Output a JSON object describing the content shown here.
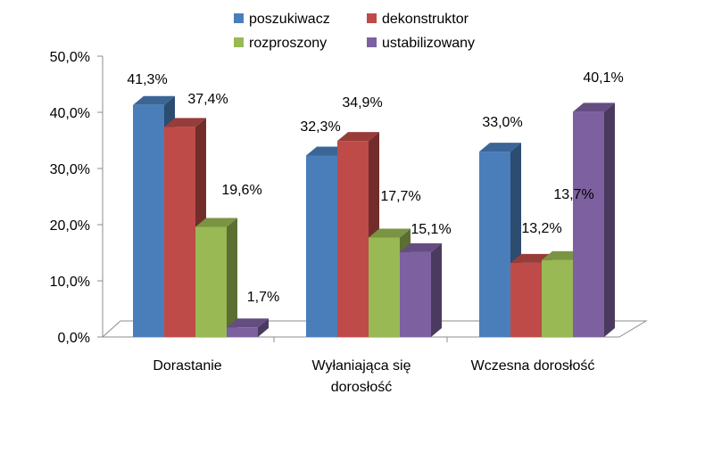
{
  "chart_data": {
    "type": "bar",
    "title": "",
    "xlabel": "",
    "ylabel": "",
    "ylim": [
      0,
      50
    ],
    "yticks": [
      "0,0%",
      "10,0%",
      "20,0%",
      "30,0%",
      "40,0%",
      "50,0%"
    ],
    "categories": [
      [
        "Dorastanie"
      ],
      [
        "Wyłaniająca się",
        "dorosłość"
      ],
      [
        "Wczesna dorosłość"
      ]
    ],
    "series": [
      {
        "name": "poszukiwacz",
        "color": "#4A7EBB",
        "values": [
          41.3,
          32.3,
          33.0
        ],
        "labels": [
          "41,3%",
          "32,3%",
          "33,0%"
        ]
      },
      {
        "name": "dekonstruktor",
        "color": "#BE4B48",
        "values": [
          37.4,
          34.9,
          13.2
        ],
        "labels": [
          "37,4%",
          "34,9%",
          "13,2%"
        ]
      },
      {
        "name": "rozproszony",
        "color": "#98B954",
        "values": [
          19.6,
          17.7,
          13.7
        ],
        "labels": [
          "19,6%",
          "17,7%",
          "13,7%"
        ]
      },
      {
        "name": "ustabilizowany",
        "color": "#7D60A0",
        "values": [
          1.7,
          15.1,
          40.1
        ],
        "labels": [
          "1,7%",
          "15,1%",
          "40,1%"
        ]
      }
    ],
    "legend_position": "top",
    "grid": false,
    "style": "3d-clustered-column"
  }
}
